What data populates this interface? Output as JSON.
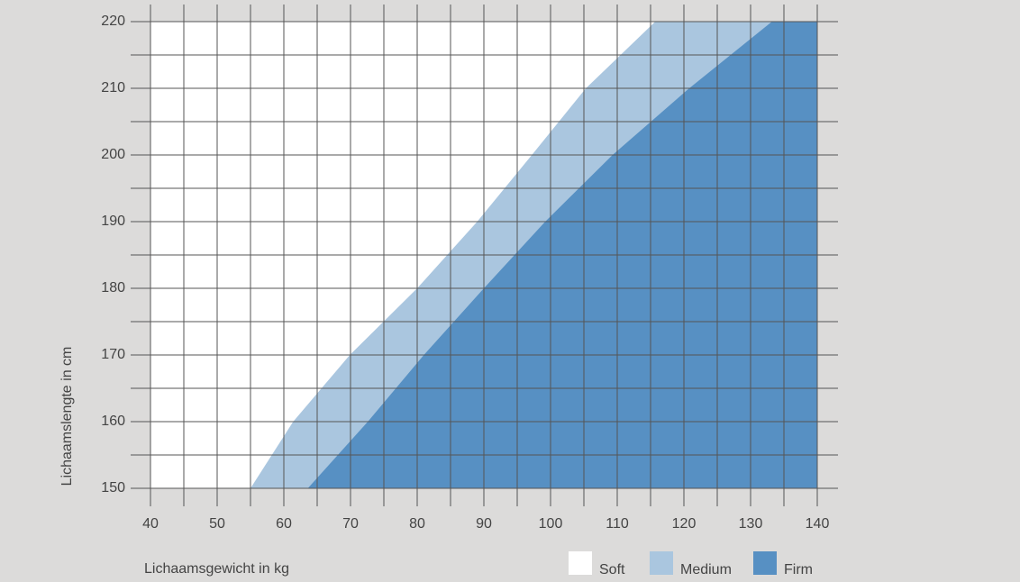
{
  "chart_data": {
    "type": "area",
    "x_label": "Lichaamsgewicht in kg",
    "y_label": "Lichaamslengte in cm",
    "xlim": [
      40,
      140
    ],
    "ylim": [
      150,
      220
    ],
    "xticks": [
      40,
      50,
      60,
      70,
      80,
      90,
      100,
      110,
      120,
      130,
      140
    ],
    "yticks": [
      150,
      160,
      170,
      180,
      190,
      200,
      210,
      220
    ],
    "xminor": [
      45,
      55,
      65,
      75,
      85,
      95,
      105,
      115,
      125,
      135
    ],
    "yminor": [
      155,
      165,
      175,
      185,
      195,
      205,
      215
    ],
    "grid": true,
    "legend": "bottom-right",
    "series": [
      {
        "name": "Soft",
        "color": "#ffffff"
      },
      {
        "name": "Medium",
        "color": "#aac6df",
        "x": [
          55,
          61.4,
          69.9,
          80,
          89,
          97.2,
          105.3,
          115.7
        ],
        "values": [
          150,
          160,
          170,
          180,
          190,
          200,
          210,
          220
        ]
      },
      {
        "name": "Firm",
        "color": "#5790c3",
        "x": [
          63.6,
          72.6,
          81,
          90,
          99.2,
          109.3,
          120.8,
          133.2
        ],
        "values": [
          150,
          160,
          170,
          180,
          190,
          200,
          210,
          220
        ]
      }
    ]
  }
}
